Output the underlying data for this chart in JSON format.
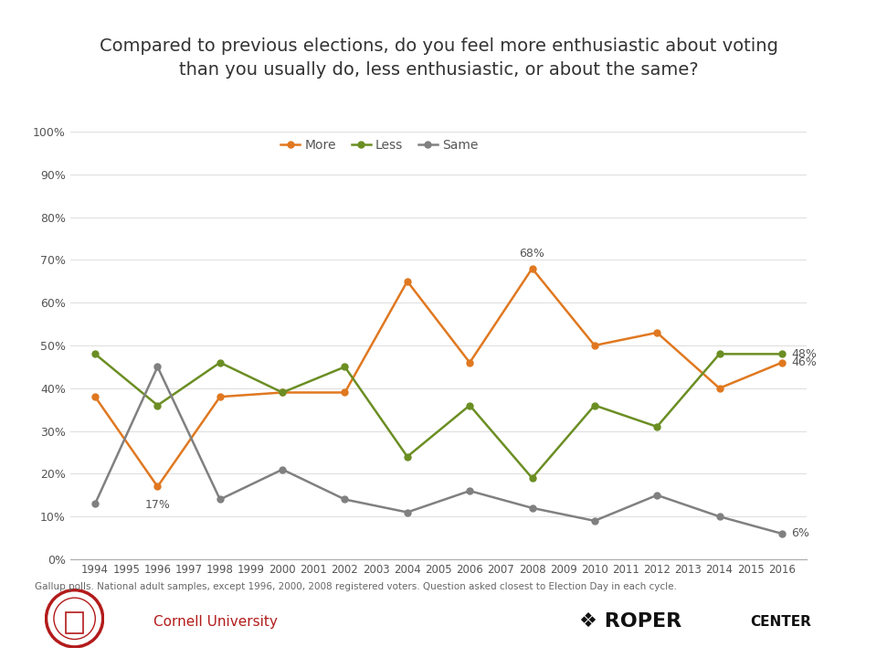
{
  "title": "Compared to previous elections, do you feel more enthusiastic about voting\nthan you usually do, less enthusiastic, or about the same?",
  "years": [
    1994,
    1996,
    1998,
    2000,
    2002,
    2004,
    2006,
    2008,
    2010,
    2012,
    2014,
    2016
  ],
  "more": [
    38,
    17,
    38,
    39,
    39,
    65,
    46,
    68,
    50,
    53,
    40,
    46
  ],
  "less": [
    48,
    36,
    46,
    39,
    45,
    24,
    36,
    19,
    36,
    31,
    48,
    48
  ],
  "same": [
    13,
    45,
    14,
    21,
    14,
    11,
    16,
    12,
    9,
    15,
    10,
    6
  ],
  "more_color": "#E07820",
  "less_color": "#6B8E23",
  "same_color": "#808080",
  "footnote": "Gallup polls. National adult samples, except 1996, 2000, 2008 registered voters. Question asked closest to Election Day in each cycle.",
  "ylim": [
    0,
    100
  ],
  "yticks": [
    0,
    10,
    20,
    30,
    40,
    50,
    60,
    70,
    80,
    90,
    100
  ],
  "ytick_labels": [
    "0%",
    "10%",
    "20%",
    "30%",
    "40%",
    "50%",
    "60%",
    "70%",
    "80%",
    "90%",
    "100%"
  ]
}
